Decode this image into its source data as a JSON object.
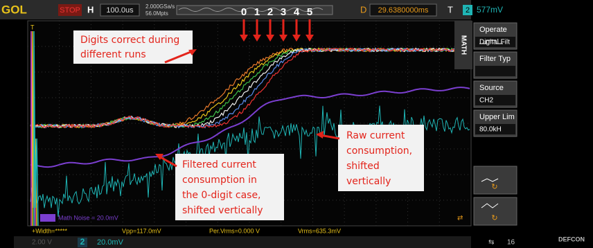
{
  "top_bar": {
    "brand": "GOL",
    "run_state": "STOP",
    "h_label": "H",
    "timebase": "100.0us",
    "sample_rate": "2.000GSa/s",
    "memory": "56.0Mpts",
    "d_label": "D",
    "delay": "29.6380000ms",
    "t_label": "T",
    "trigger_channel": "2",
    "trigger_level": "577mV"
  },
  "digits": [
    "0",
    "1",
    "2",
    "3",
    "4",
    "5"
  ],
  "annotations": [
    {
      "lines": [
        "Digits correct during",
        "different runs"
      ]
    },
    {
      "lines": [
        "Raw current",
        "consumption,",
        "shifted",
        "vertically"
      ]
    },
    {
      "lines": [
        "Filtered current",
        "consumption in",
        "the 0-digit case,",
        "shifted vertically"
      ]
    }
  ],
  "menu": {
    "tab": "MATH",
    "items": [
      {
        "title": "Operate",
        "value": "Digital Filt"
      },
      {
        "title": "Filter Typ",
        "value": ""
      },
      {
        "title": "Source",
        "value": "CH2"
      },
      {
        "title": "Upper Lim",
        "value": "80.0kH"
      }
    ]
  },
  "math_label": "Math Noise = 20.0mV",
  "measurements": [
    "+Width=*****",
    "Vpp=117.0mV",
    "Per.Vrms=0.000 V",
    "Vrms=635.3mV"
  ],
  "bottom_bar": {
    "ch1_scale": "2.00 V",
    "channel": "2",
    "ch2_scale": "20.0mV",
    "usb": "16"
  },
  "watermark": "DEFCON"
}
